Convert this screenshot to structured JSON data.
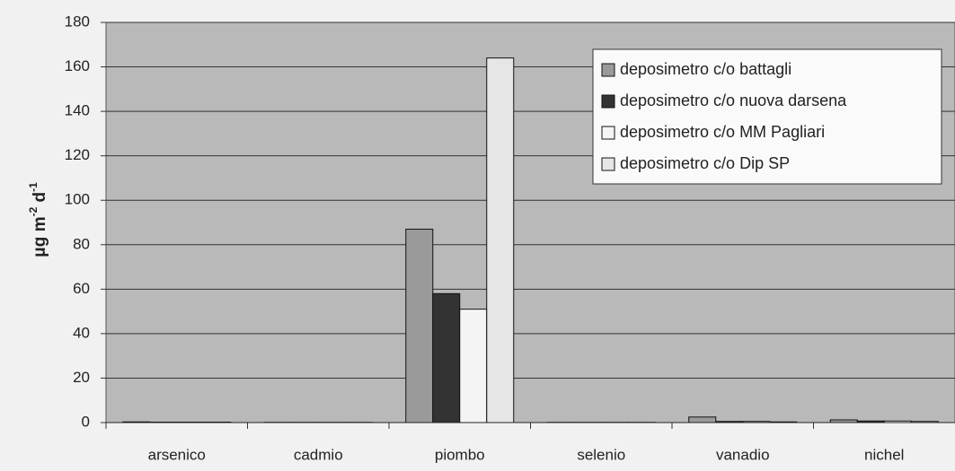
{
  "chart_data": {
    "type": "bar",
    "ylabel": [
      "μg m",
      "-2",
      " d",
      "-1"
    ],
    "categories": [
      "arsenico",
      "cadmio",
      "piombo",
      "selenio",
      "vanadio",
      "nichel"
    ],
    "series": [
      {
        "name": "deposimetro c/o battagli",
        "color": "#9a9a9a",
        "values": [
          0.3,
          0.1,
          87,
          0.1,
          2.5,
          1.2
        ]
      },
      {
        "name": "deposimetro c/o nuova darsena",
        "color": "#333333",
        "values": [
          0.2,
          0.1,
          58,
          0.1,
          0.5,
          0.7
        ]
      },
      {
        "name": "deposimetro c/o MM Pagliari",
        "color": "#f4f4f4",
        "values": [
          0.2,
          0.1,
          51,
          0.1,
          0.5,
          0.7
        ]
      },
      {
        "name": "deposimetro c/o Dip SP",
        "color": "#e6e6e6",
        "values": [
          0.2,
          0.1,
          164,
          0.1,
          0.3,
          0.5
        ]
      }
    ],
    "ylim": [
      0,
      180
    ],
    "yticks": [
      0,
      20,
      40,
      60,
      80,
      100,
      120,
      140,
      160,
      180
    ],
    "grid": true,
    "legend": "upper right"
  }
}
